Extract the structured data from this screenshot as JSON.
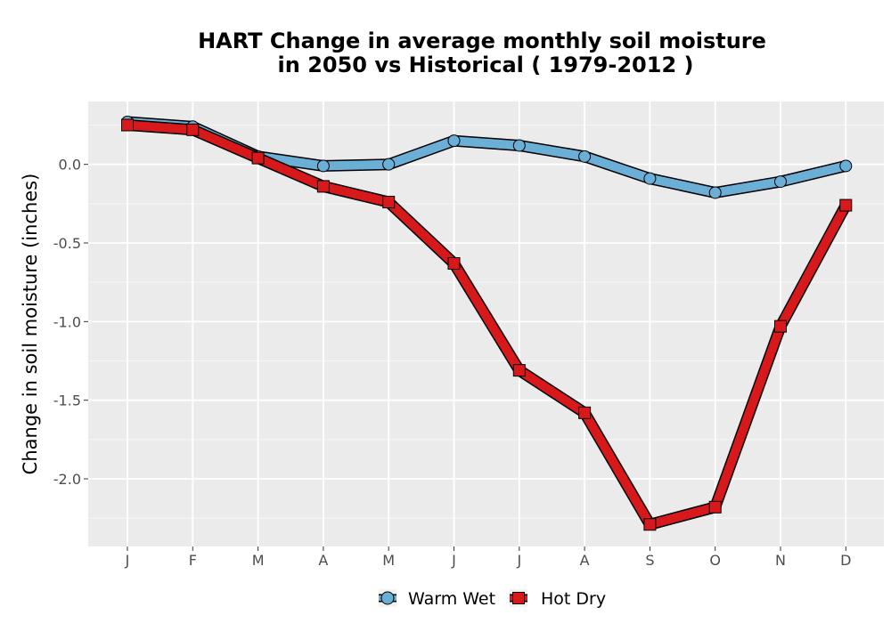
{
  "chart_data": {
    "type": "line",
    "title_line1": "HART  Change in average monthly soil moisture",
    "title_line2": "in 2050 vs Historical ( 1979-2012 )",
    "xlabel": "",
    "ylabel": "Change in soil moisture (inches)",
    "categories": [
      "J",
      "F",
      "M",
      "A",
      "M",
      "J",
      "J",
      "A",
      "S",
      "O",
      "N",
      "D"
    ],
    "yticks": [
      "0.0",
      "-0.5",
      "-1.0",
      "-1.5",
      "-2.0"
    ],
    "ytick_values": [
      0.0,
      -0.5,
      -1.0,
      -1.5,
      -2.0
    ],
    "ylim": [
      -2.43,
      0.4
    ],
    "grid": true,
    "legend_position": "bottom",
    "series": [
      {
        "name": "Warm Wet",
        "marker": "circle",
        "color": "#6baed6",
        "values": [
          0.27,
          0.24,
          0.05,
          -0.01,
          0.0,
          0.15,
          0.12,
          0.05,
          -0.09,
          -0.18,
          -0.11,
          -0.01
        ]
      },
      {
        "name": "Hot Dry",
        "marker": "square",
        "color": "#d7191c",
        "values": [
          0.25,
          0.22,
          0.04,
          -0.14,
          -0.24,
          -0.63,
          -1.31,
          -1.58,
          -2.29,
          -2.18,
          -1.03,
          -0.26
        ]
      }
    ]
  }
}
